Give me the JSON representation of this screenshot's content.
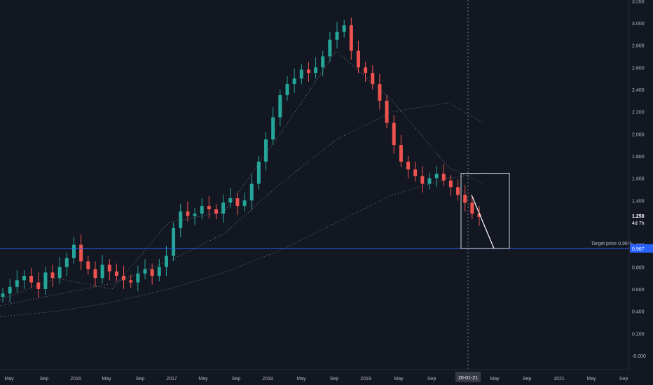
{
  "colors": {
    "background": "#131722",
    "up": "#26a69a",
    "down": "#ef5350",
    "axis_text": "#b2b5be",
    "target_line": "#2962ff",
    "target_label_bg": "#2962ff",
    "box": "#d1d4dc",
    "dots": "#787b86"
  },
  "chart_data": {
    "type": "candlestick",
    "title": "",
    "price_axis": {
      "ticks": [
        "3.200",
        "3.000",
        "2.800",
        "2.600",
        "2.400",
        "2.200",
        "2.000",
        "1.800",
        "1.600",
        "1.400",
        "1.200",
        "1.000",
        "0.800",
        "0.600",
        "0.400",
        "0.200",
        "-0.000"
      ],
      "ylim": [
        -0.13,
        3.26
      ],
      "last_price": "1.250",
      "countdown": "4d 7h"
    },
    "time_axis": {
      "ticks": [
        "May",
        "Sep",
        "2016",
        "May",
        "Sep",
        "2017",
        "May",
        "Sep",
        "2018",
        "May",
        "Sep",
        "2019",
        "May",
        "Sep",
        "20-01-21",
        "May",
        "Sep",
        "2021",
        "May",
        "Sep"
      ],
      "crosshair_date": "20-01-21"
    },
    "close_series": {
      "description": "weekly closes from Apr 2015 to Jan 2020 (approximate)",
      "values": [
        0.56,
        0.62,
        0.68,
        0.72,
        0.66,
        0.6,
        0.75,
        0.7,
        0.8,
        0.88,
        1.0,
        0.85,
        0.78,
        0.7,
        0.82,
        0.76,
        0.72,
        0.68,
        0.66,
        0.74,
        0.78,
        0.72,
        0.8,
        0.9,
        1.15,
        1.3,
        1.26,
        1.28,
        1.35,
        1.32,
        1.28,
        1.38,
        1.42,
        1.35,
        1.4,
        1.55,
        1.75,
        1.95,
        2.15,
        2.35,
        2.45,
        2.5,
        2.58,
        2.55,
        2.6,
        2.7,
        2.85,
        2.92,
        2.98,
        2.75,
        2.6,
        2.55,
        2.45,
        2.3,
        2.1,
        1.9,
        1.75,
        1.68,
        1.62,
        1.55,
        1.6,
        1.64,
        1.58,
        1.52,
        1.45,
        1.38,
        1.28,
        1.25
      ]
    },
    "annotations": {
      "target_label": "Target price 0,96%",
      "target_value": 0.967,
      "target_value_label": "0.967",
      "projection_from": 1.45,
      "projection_to": 0.967
    }
  }
}
